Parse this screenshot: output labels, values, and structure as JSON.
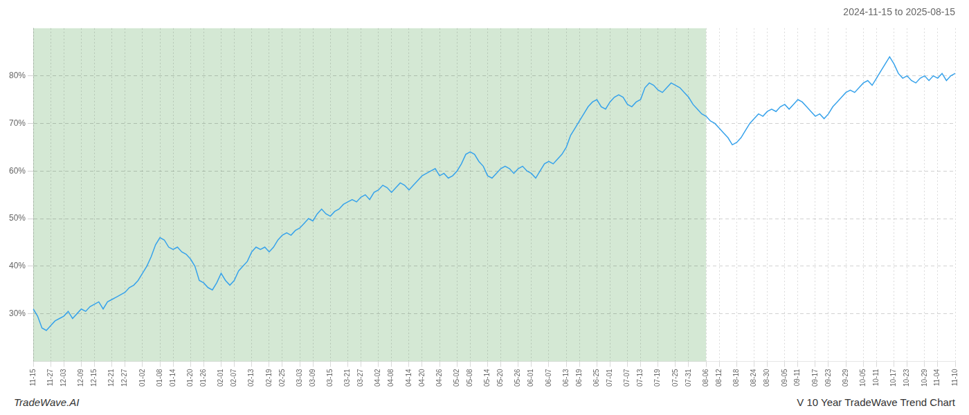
{
  "chart_data": {
    "type": "line",
    "title": "2024-11-15 to 2025-08-15",
    "footer_left": "TradeWave.AI",
    "footer_right": "V 10 Year TradeWave Trend Chart",
    "grid": true,
    "ylim": [
      20,
      90
    ],
    "yticks": [
      {
        "value": 30,
        "label": "30%"
      },
      {
        "value": 40,
        "label": "40%"
      },
      {
        "value": 50,
        "label": "50%"
      },
      {
        "value": 60,
        "label": "60%"
      },
      {
        "value": 70,
        "label": "70%"
      },
      {
        "value": 80,
        "label": "80%"
      }
    ],
    "highlight": {
      "from": "11-15",
      "to": "08-06",
      "color": "#d4e8d4"
    },
    "categories": [
      "11-15",
      null,
      null,
      null,
      "11-27",
      null,
      null,
      "12-03",
      null,
      null,
      null,
      "12-09",
      null,
      null,
      "12-15",
      null,
      null,
      null,
      "12-21",
      null,
      null,
      "12-27",
      null,
      null,
      null,
      "01-02",
      null,
      null,
      null,
      "01-08",
      null,
      null,
      "01-14",
      null,
      null,
      null,
      "01-20",
      null,
      null,
      "01-26",
      null,
      null,
      null,
      "02-01",
      null,
      null,
      "02-07",
      null,
      null,
      null,
      "02-13",
      null,
      null,
      null,
      "02-19",
      null,
      null,
      "02-25",
      null,
      null,
      null,
      "03-03",
      null,
      null,
      "03-09",
      null,
      null,
      null,
      "03-15",
      null,
      null,
      null,
      "03-21",
      null,
      null,
      "03-27",
      null,
      null,
      null,
      "04-02",
      null,
      null,
      "04-08",
      null,
      null,
      null,
      "04-14",
      null,
      null,
      "04-20",
      null,
      null,
      null,
      "04-26",
      null,
      null,
      null,
      "05-02",
      null,
      null,
      "05-08",
      null,
      null,
      null,
      "05-14",
      null,
      null,
      "05-20",
      null,
      null,
      null,
      "05-26",
      null,
      null,
      "06-01",
      null,
      null,
      null,
      "06-07",
      null,
      null,
      null,
      "06-13",
      null,
      null,
      "06-19",
      null,
      null,
      null,
      "06-25",
      null,
      null,
      "07-01",
      null,
      null,
      null,
      "07-07",
      null,
      null,
      "07-13",
      null,
      null,
      null,
      "07-19",
      null,
      null,
      null,
      "07-25",
      null,
      null,
      "07-31",
      null,
      null,
      null,
      "08-06",
      null,
      null,
      "08-12",
      null,
      null,
      null,
      "08-18",
      null,
      null,
      null,
      "08-24",
      null,
      null,
      "08-30",
      null,
      null,
      null,
      "09-05",
      null,
      null,
      "09-11",
      null,
      null,
      null,
      "09-17",
      null,
      null,
      "09-23",
      null,
      null,
      null,
      "09-29",
      null,
      null,
      null,
      "10-05",
      null,
      null,
      "10-11",
      null,
      null,
      null,
      "10-17",
      null,
      null,
      "10-23",
      null,
      null,
      null,
      "10-29",
      null,
      null,
      "11-04",
      null,
      null,
      null,
      "11-10"
    ],
    "values": [
      31.0,
      29.5,
      27.0,
      26.5,
      27.5,
      28.5,
      29.0,
      29.5,
      30.5,
      29.0,
      30.0,
      31.0,
      30.5,
      31.5,
      32.0,
      32.5,
      31.0,
      32.5,
      33.0,
      33.5,
      34.0,
      34.5,
      35.5,
      36.0,
      37.0,
      38.5,
      40.0,
      42.0,
      44.5,
      46.0,
      45.5,
      44.0,
      43.5,
      44.0,
      43.0,
      42.5,
      41.5,
      40.0,
      37.0,
      36.5,
      35.5,
      35.0,
      36.5,
      38.5,
      37.0,
      36.0,
      37.0,
      39.0,
      40.0,
      41.0,
      43.0,
      44.0,
      43.5,
      44.0,
      43.0,
      44.0,
      45.5,
      46.5,
      47.0,
      46.5,
      47.5,
      48.0,
      49.0,
      50.0,
      49.5,
      51.0,
      52.0,
      51.0,
      50.5,
      51.5,
      52.0,
      53.0,
      53.5,
      54.0,
      53.5,
      54.5,
      55.0,
      54.0,
      55.5,
      56.0,
      57.0,
      56.5,
      55.5,
      56.5,
      57.5,
      57.0,
      56.0,
      57.0,
      58.0,
      59.0,
      59.5,
      60.0,
      60.5,
      59.0,
      59.5,
      58.5,
      59.0,
      60.0,
      61.5,
      63.5,
      64.0,
      63.5,
      62.0,
      61.0,
      59.0,
      58.5,
      59.5,
      60.5,
      61.0,
      60.5,
      59.5,
      60.5,
      61.0,
      60.0,
      59.5,
      58.5,
      60.0,
      61.5,
      62.0,
      61.5,
      62.5,
      63.5,
      65.0,
      67.5,
      69.0,
      70.5,
      72.0,
      73.5,
      74.5,
      75.0,
      73.5,
      73.0,
      74.5,
      75.5,
      76.0,
      75.5,
      74.0,
      73.5,
      74.5,
      75.0,
      77.5,
      78.5,
      78.0,
      77.0,
      76.5,
      77.5,
      78.5,
      78.0,
      77.5,
      76.5,
      75.5,
      74.0,
      73.0,
      72.0,
      71.5,
      70.5,
      70.0,
      69.0,
      68.0,
      67.0,
      65.5,
      66.0,
      67.0,
      68.5,
      70.0,
      71.0,
      72.0,
      71.5,
      72.5,
      73.0,
      72.5,
      73.5,
      74.0,
      73.0,
      74.0,
      75.0,
      74.5,
      73.5,
      72.5,
      71.5,
      72.0,
      71.0,
      72.0,
      73.5,
      74.5,
      75.5,
      76.5,
      77.0,
      76.5,
      77.5,
      78.5,
      79.0,
      78.0,
      79.5,
      81.0,
      82.5,
      84.0,
      82.5,
      80.5,
      79.5,
      80.0,
      79.0,
      78.5,
      79.5,
      80.0,
      79.0,
      80.0,
      79.5,
      80.5,
      79.0,
      80.0,
      80.5
    ]
  }
}
